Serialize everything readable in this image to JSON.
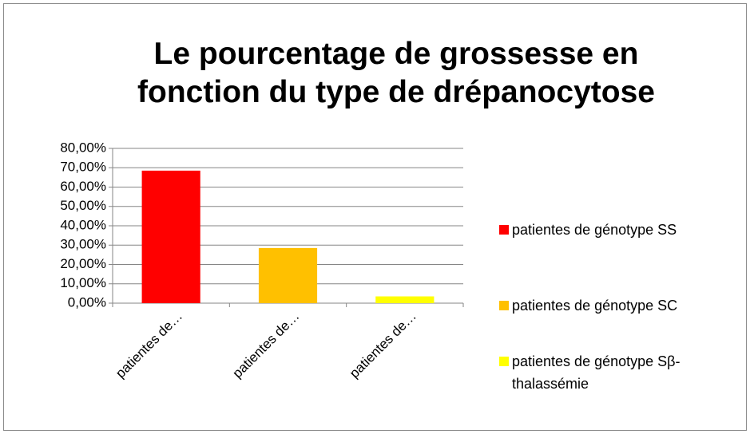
{
  "chart_data": {
    "type": "bar",
    "title": "Le pourcentage de grossesse en fonction du type de drépanocytose",
    "categories": [
      "patientes de…",
      "patientes de…",
      "patientes de…"
    ],
    "values": [
      68.5,
      28.5,
      3.5
    ],
    "colors": [
      "#ff0000",
      "#ffc000",
      "#ffff00"
    ],
    "legend": [
      "patientes de génotype SS",
      "patientes de génotype SC",
      "patientes de génotype Sβ-thalassémie"
    ],
    "legend_position": "right",
    "ylim": [
      0,
      80
    ],
    "yticks": [
      {
        "value": 0,
        "label": "0,00%"
      },
      {
        "value": 10,
        "label": "10,00%"
      },
      {
        "value": 20,
        "label": "20,00%"
      },
      {
        "value": 30,
        "label": "30,00%"
      },
      {
        "value": 40,
        "label": "40,00%"
      },
      {
        "value": 50,
        "label": "50,00%"
      },
      {
        "value": 60,
        "label": "60,00%"
      },
      {
        "value": 70,
        "label": "70,00%"
      },
      {
        "value": 80,
        "label": "80,00%"
      }
    ],
    "grid": true
  }
}
